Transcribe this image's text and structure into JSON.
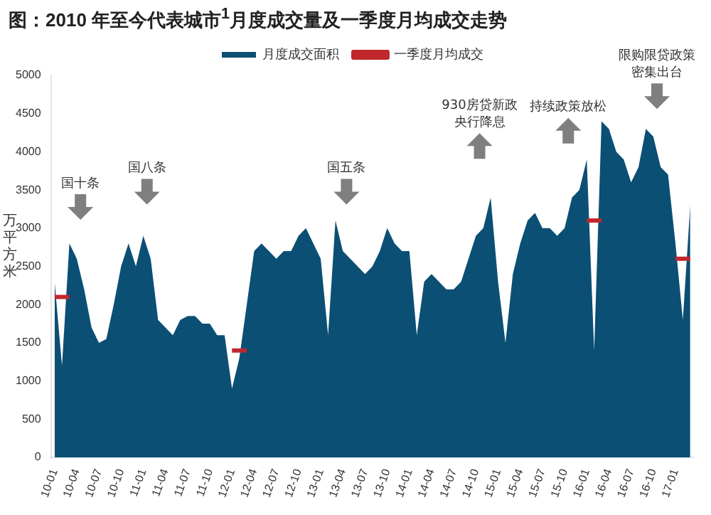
{
  "chart_data": {
    "type": "area",
    "title": "图：2010 年至今代表城市$^{1}$月度成交量及一季度月均成交走势",
    "ylabel": "万平方米",
    "categories": [
      "10-01",
      null,
      null,
      "10-04",
      null,
      null,
      "10-07",
      null,
      null,
      "10-10",
      null,
      null,
      "11-01",
      null,
      null,
      "11-04",
      null,
      null,
      "11-07",
      null,
      null,
      "11-10",
      null,
      null,
      "12-01",
      null,
      null,
      "12-04",
      null,
      null,
      "12-07",
      null,
      null,
      "12-10",
      null,
      null,
      "13-01",
      null,
      null,
      "13-04",
      null,
      null,
      "13-07",
      null,
      null,
      "13-10",
      null,
      null,
      "14-01",
      null,
      null,
      "14-04",
      null,
      null,
      "14-07",
      null,
      null,
      "14-10",
      null,
      null,
      "15-01",
      null,
      null,
      "15-04",
      null,
      null,
      "15-07",
      null,
      null,
      "15-10",
      null,
      null,
      "16-01",
      null,
      null,
      "16-04",
      null,
      null,
      "16-07",
      null,
      null,
      "16-10",
      null,
      null,
      "17-01",
      null,
      null
    ],
    "series": [
      {
        "name": "月度成交面积",
        "color": "#0b4f74",
        "values": [
          2300,
          1200,
          2800,
          2600,
          2200,
          1700,
          1500,
          1550,
          2000,
          2500,
          2800,
          2500,
          2900,
          2600,
          1800,
          1700,
          1600,
          1800,
          1850,
          1850,
          1750,
          1750,
          1600,
          1600,
          900,
          1300,
          2000,
          2700,
          2800,
          2700,
          2600,
          2700,
          2700,
          2900,
          3000,
          2800,
          2600,
          1600,
          3100,
          2700,
          2600,
          2500,
          2400,
          2500,
          2700,
          3000,
          2800,
          2700,
          2700,
          1600,
          2300,
          2400,
          2300,
          2200,
          2200,
          2300,
          2600,
          2900,
          3000,
          3400,
          2300,
          1500,
          2400,
          2800,
          3100,
          3200,
          3000,
          3000,
          2900,
          3000,
          3400,
          3500,
          3900,
          1400,
          4400,
          4300,
          4000,
          3900,
          3600,
          3800,
          4300,
          4200,
          3800,
          3700,
          2800,
          1800,
          3300
        ]
      },
      {
        "name": "一季度月均成交",
        "type": "line",
        "color": "#c0282d",
        "values": [
          2100,
          2100,
          2100,
          null,
          null,
          null,
          null,
          null,
          null,
          null,
          null,
          null,
          null,
          null,
          null,
          null,
          null,
          null,
          null,
          null,
          null,
          null,
          null,
          null,
          1400,
          1400,
          1400,
          null,
          null,
          null,
          null,
          null,
          null,
          null,
          null,
          null,
          null,
          null,
          null,
          null,
          null,
          null,
          null,
          null,
          null,
          null,
          null,
          null,
          null,
          null,
          null,
          null,
          null,
          null,
          null,
          null,
          null,
          null,
          null,
          null,
          null,
          null,
          null,
          null,
          null,
          null,
          null,
          null,
          null,
          null,
          null,
          null,
          3100,
          3100,
          3100,
          null,
          null,
          null,
          null,
          null,
          null,
          null,
          null,
          null,
          2600,
          2600,
          2600
        ]
      }
    ],
    "ylim": [
      0,
      5000
    ],
    "yticks": [
      0,
      500,
      1000,
      1500,
      2000,
      2500,
      3000,
      3500,
      4000,
      4500,
      5000
    ],
    "grid": false,
    "legend": "top",
    "marker": "none",
    "annotations": [
      "国十条",
      "国八条",
      "国五条",
      "930房贷新政央行降息",
      "持续政策放松",
      "限购限贷政策密集出台"
    ]
  }
}
